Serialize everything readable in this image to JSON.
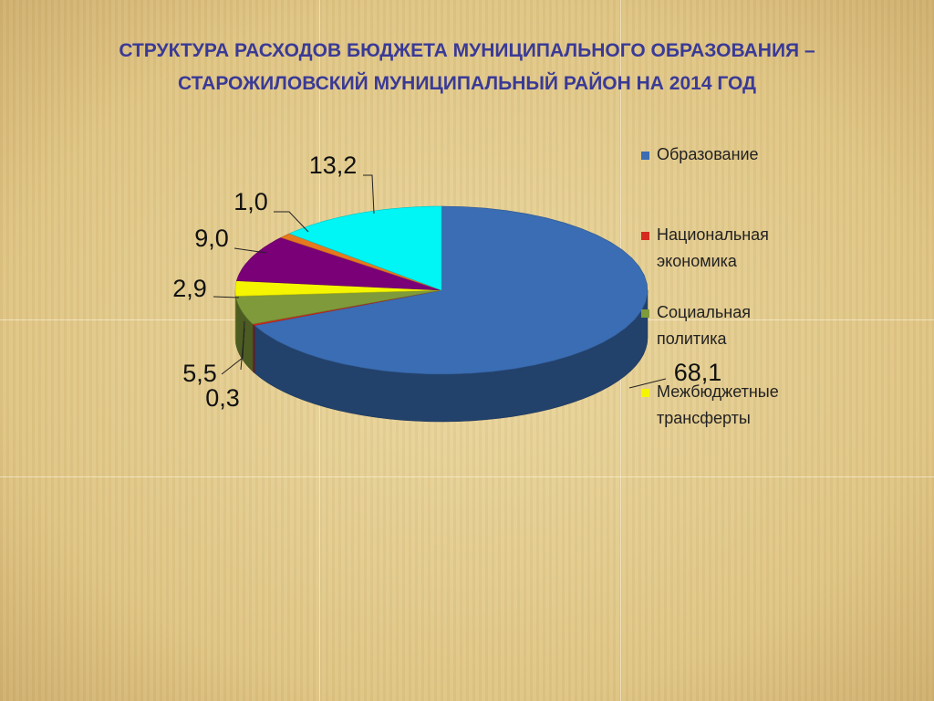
{
  "chart_data": {
    "type": "pie3d",
    "title": "СТРУКТУРА РАСХОДОВ БЮДЖЕТА МУНИЦИПАЛЬНОГО  ОБРАЗОВАНИЯ – СТАРОЖИЛОВСКИЙ МУНИЦИПАЛЬНЫЙ РАЙОН НА 2014 ГОД",
    "categories": [
      "Образование",
      "Национальная экономика",
      "Социальная политика",
      "Межбюджетные трансферты",
      null,
      null,
      null
    ],
    "values": [
      68.1,
      0.3,
      5.5,
      2.9,
      9.0,
      1.0,
      13.2
    ],
    "value_labels": [
      "68,1",
      "0,3",
      "5,5",
      "2,9",
      "9,0",
      "1,0",
      "13,2"
    ],
    "colors": [
      "#3a6db3",
      "#d62a1e",
      "#7f9a3a",
      "#f5f500",
      "#7a0078",
      "#e6781e",
      "#00f5f5"
    ]
  }
}
